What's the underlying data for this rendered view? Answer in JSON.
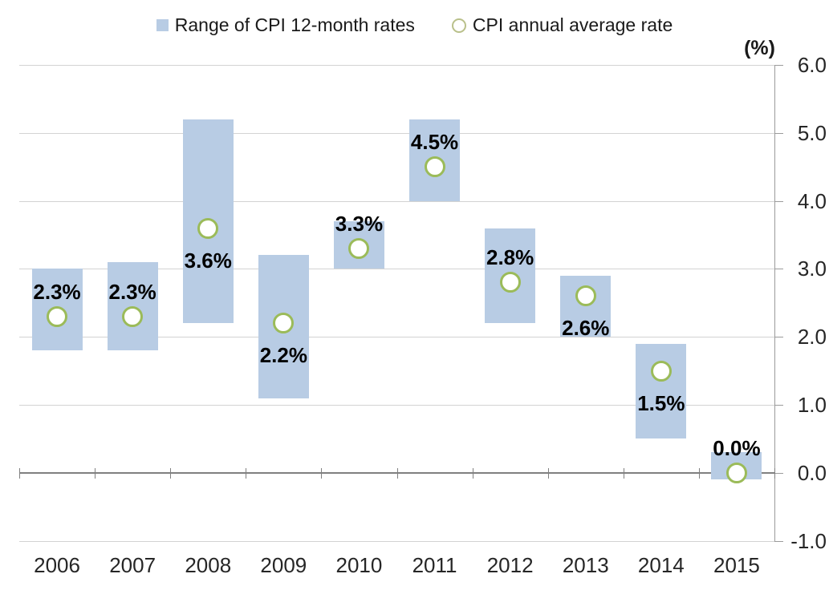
{
  "legend": {
    "range_label": "Range of CPI 12-month rates",
    "average_label": "CPI annual average rate"
  },
  "axes": {
    "unit_label": "(%)",
    "y_ticks": [
      6.0,
      5.0,
      4.0,
      3.0,
      2.0,
      1.0,
      0.0,
      -1.0
    ],
    "x_labels": [
      "2006",
      "2007",
      "2008",
      "2009",
      "2010",
      "2011",
      "2012",
      "2013",
      "2014",
      "2015"
    ]
  },
  "colors": {
    "bar_fill": "#b8cce4",
    "marker_stroke": "#9bbb59",
    "legend_circle_stroke": "#b9c08a",
    "gridline": "#d3d3d3",
    "zero_axis": "#808080",
    "axis_line": "#9b9b9b"
  },
  "chart_data": {
    "type": "bar",
    "subtype": "floating-range-bar-with-scatter-markers",
    "title": "",
    "xlabel": "",
    "ylabel": "(%)",
    "ylim": [
      -1.0,
      6.0
    ],
    "grid": true,
    "legend_position": "top",
    "categories": [
      "2006",
      "2007",
      "2008",
      "2009",
      "2010",
      "2011",
      "2012",
      "2013",
      "2014",
      "2015"
    ],
    "series": [
      {
        "name": "Range of CPI 12-month rates",
        "type": "range-bar",
        "min": [
          1.8,
          1.8,
          2.2,
          1.1,
          3.0,
          4.0,
          2.2,
          2.0,
          0.5,
          -0.1
        ],
        "max": [
          3.0,
          3.1,
          5.2,
          3.2,
          3.7,
          5.2,
          3.6,
          2.9,
          1.9,
          0.3
        ]
      },
      {
        "name": "CPI annual average rate",
        "type": "scatter",
        "values": [
          2.3,
          2.3,
          3.6,
          2.2,
          3.3,
          4.5,
          2.8,
          2.6,
          1.5,
          0.0
        ]
      }
    ],
    "data_labels": [
      "2.3%",
      "2.3%",
      "3.6%",
      "2.2%",
      "3.3%",
      "4.5%",
      "2.8%",
      "2.6%",
      "1.5%",
      "0.0%"
    ],
    "data_label_placement": [
      "above",
      "above",
      "below",
      "below",
      "above",
      "above",
      "above",
      "below",
      "below",
      "above"
    ]
  }
}
